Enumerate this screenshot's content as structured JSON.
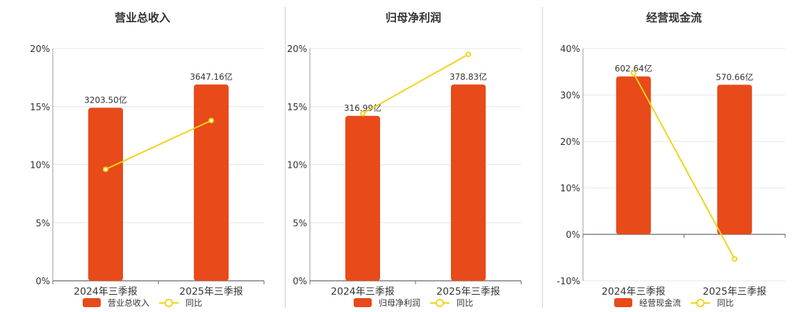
{
  "colors": {
    "bar": "#e84a1a",
    "line": "#f2d21b",
    "grid": "#e6e6e6",
    "axis": "#666666"
  },
  "chart_data": [
    {
      "type": "bar",
      "title": "营业总收入",
      "categories": [
        "2024年三季报",
        "2025年三季报"
      ],
      "bar_labels": [
        "3203.50亿",
        "3647.16亿"
      ],
      "bar_values_pct": [
        14.9,
        16.9
      ],
      "line_values_pct": [
        9.6,
        13.8
      ],
      "ylim": [
        0,
        20
      ],
      "yticks": [
        0,
        5,
        10,
        15,
        20
      ],
      "ytick_labels": [
        "0%",
        "5%",
        "10%",
        "15%",
        "20%"
      ],
      "legend": [
        "营业总收入",
        "同比"
      ]
    },
    {
      "type": "bar",
      "title": "归母净利润",
      "categories": [
        "2024年三季报",
        "2025年三季报"
      ],
      "bar_labels": [
        "316.99亿",
        "378.83亿"
      ],
      "bar_values_pct": [
        14.2,
        16.9
      ],
      "line_values_pct": [
        14.4,
        19.5
      ],
      "ylim": [
        0,
        20
      ],
      "yticks": [
        0,
        5,
        10,
        15,
        20
      ],
      "ytick_labels": [
        "0%",
        "5%",
        "10%",
        "15%",
        "20%"
      ],
      "legend": [
        "归母净利润",
        "同比"
      ]
    },
    {
      "type": "bar",
      "title": "经营现金流",
      "categories": [
        "2024年三季报",
        "2025年三季报"
      ],
      "bar_labels": [
        "602.64亿",
        "570.66亿"
      ],
      "bar_values_pct": [
        34.0,
        32.2
      ],
      "line_values_pct": [
        34.7,
        -5.3
      ],
      "ylim": [
        -10,
        40
      ],
      "yticks": [
        -10,
        0,
        10,
        20,
        30,
        40
      ],
      "ytick_labels": [
        "-10%",
        "0%",
        "10%",
        "20%",
        "30%",
        "40%"
      ],
      "legend": [
        "经营现金流",
        "同比"
      ]
    }
  ]
}
